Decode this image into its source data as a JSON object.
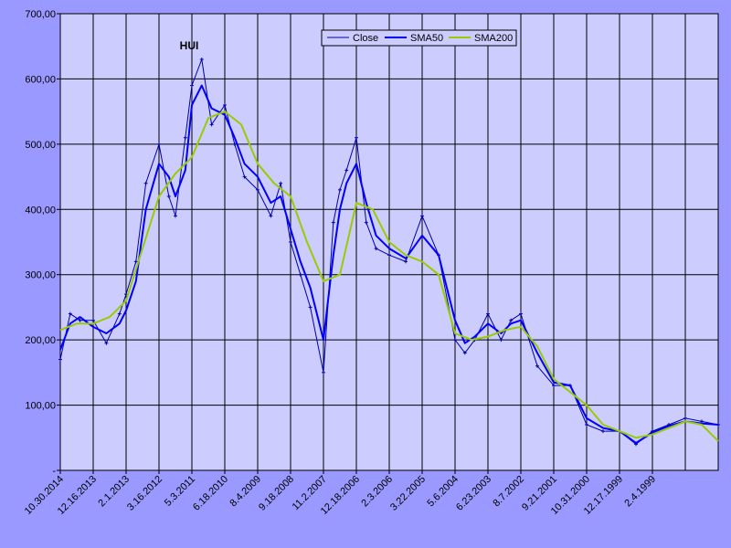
{
  "chart_data": {
    "type": "line",
    "title": "HUI",
    "xlabel": "",
    "ylabel": "",
    "ylim": [
      0,
      700
    ],
    "y_ticks": [
      "-",
      "100,00",
      "200,00",
      "300,00",
      "400,00",
      "500,00",
      "600,00",
      "700,00"
    ],
    "x_ticks": [
      "10.30.2014",
      "12.16.2013",
      "2.1.2013",
      "3.16.2012",
      "5.3.2011",
      "6.18.2010",
      "8.4.2009",
      "9.18.2008",
      "11.2.2007",
      "12.18.2006",
      "2.3.2006",
      "3.22.2005",
      "5.6.2004",
      "6.23.2003",
      "8.7.2002",
      "9.21.2001",
      "10.31.2000",
      "12.17.1999",
      "2.4.1999"
    ],
    "grid": true,
    "legend_position": "top-right",
    "x_index_range": [
      0,
      20
    ],
    "colors": {
      "background": "#9999ff",
      "plot_area": "#ccccff",
      "close": "#0000aa",
      "sma50": "#0000ff",
      "sma200": "#99cc00"
    },
    "series": [
      {
        "name": "Close",
        "x": [
          0,
          0.3,
          0.6,
          1,
          1.4,
          1.8,
          2,
          2.3,
          2.6,
          3,
          3.3,
          3.5,
          3.8,
          4,
          4.3,
          4.6,
          5,
          5.3,
          5.6,
          6,
          6.4,
          6.7,
          7,
          7.3,
          7.6,
          8,
          8.3,
          8.5,
          8.7,
          9,
          9.3,
          9.6,
          10,
          10.5,
          11,
          11.5,
          12,
          12.3,
          12.6,
          13,
          13.4,
          13.7,
          14,
          14.5,
          15,
          15.5,
          16,
          16.5,
          17,
          17.5,
          18,
          18.5,
          19,
          19.5,
          20
        ],
        "values": [
          170,
          240,
          230,
          230,
          195,
          240,
          270,
          320,
          440,
          500,
          420,
          390,
          510,
          590,
          630,
          530,
          560,
          500,
          450,
          430,
          390,
          440,
          350,
          300,
          250,
          150,
          380,
          430,
          460,
          510,
          380,
          340,
          330,
          320,
          390,
          330,
          200,
          180,
          200,
          240,
          200,
          230,
          240,
          160,
          130,
          130,
          70,
          60,
          60,
          40,
          60,
          70,
          80,
          75,
          70
        ]
      },
      {
        "name": "SMA50",
        "x": [
          0,
          0.3,
          0.6,
          1,
          1.4,
          1.8,
          2,
          2.3,
          2.6,
          3,
          3.3,
          3.5,
          3.8,
          4,
          4.3,
          4.6,
          5,
          5.3,
          5.6,
          6,
          6.4,
          6.7,
          7,
          7.3,
          7.6,
          8,
          8.3,
          8.5,
          8.7,
          9,
          9.3,
          9.6,
          10,
          10.5,
          11,
          11.5,
          12,
          12.3,
          12.6,
          13,
          13.4,
          13.7,
          14,
          14.5,
          15,
          15.5,
          16,
          16.5,
          17,
          17.5,
          18,
          18.5,
          19,
          19.5,
          20
        ],
        "values": [
          185,
          225,
          235,
          220,
          210,
          225,
          245,
          290,
          400,
          470,
          450,
          420,
          460,
          560,
          590,
          555,
          545,
          510,
          470,
          450,
          410,
          420,
          370,
          320,
          280,
          200,
          330,
          400,
          440,
          470,
          410,
          360,
          340,
          325,
          360,
          330,
          230,
          195,
          205,
          225,
          210,
          225,
          230,
          180,
          135,
          130,
          80,
          65,
          60,
          42,
          58,
          68,
          75,
          72,
          70
        ]
      },
      {
        "name": "SMA200",
        "x": [
          0,
          0.5,
          1,
          1.5,
          2,
          2.5,
          3,
          3.5,
          4,
          4.5,
          5,
          5.5,
          6,
          6.5,
          7,
          7.5,
          8,
          8.5,
          9,
          9.5,
          10,
          10.5,
          11,
          11.5,
          12,
          12.5,
          13,
          13.5,
          14,
          14.5,
          15,
          15.5,
          16,
          16.5,
          17,
          17.5,
          18,
          18.5,
          19,
          19.5,
          20
        ],
        "values": [
          215,
          225,
          225,
          235,
          260,
          340,
          420,
          455,
          480,
          540,
          550,
          530,
          470,
          440,
          420,
          350,
          290,
          300,
          410,
          400,
          350,
          330,
          320,
          300,
          210,
          200,
          205,
          215,
          220,
          190,
          140,
          120,
          100,
          70,
          60,
          50,
          55,
          65,
          75,
          70,
          45
        ]
      }
    ]
  }
}
